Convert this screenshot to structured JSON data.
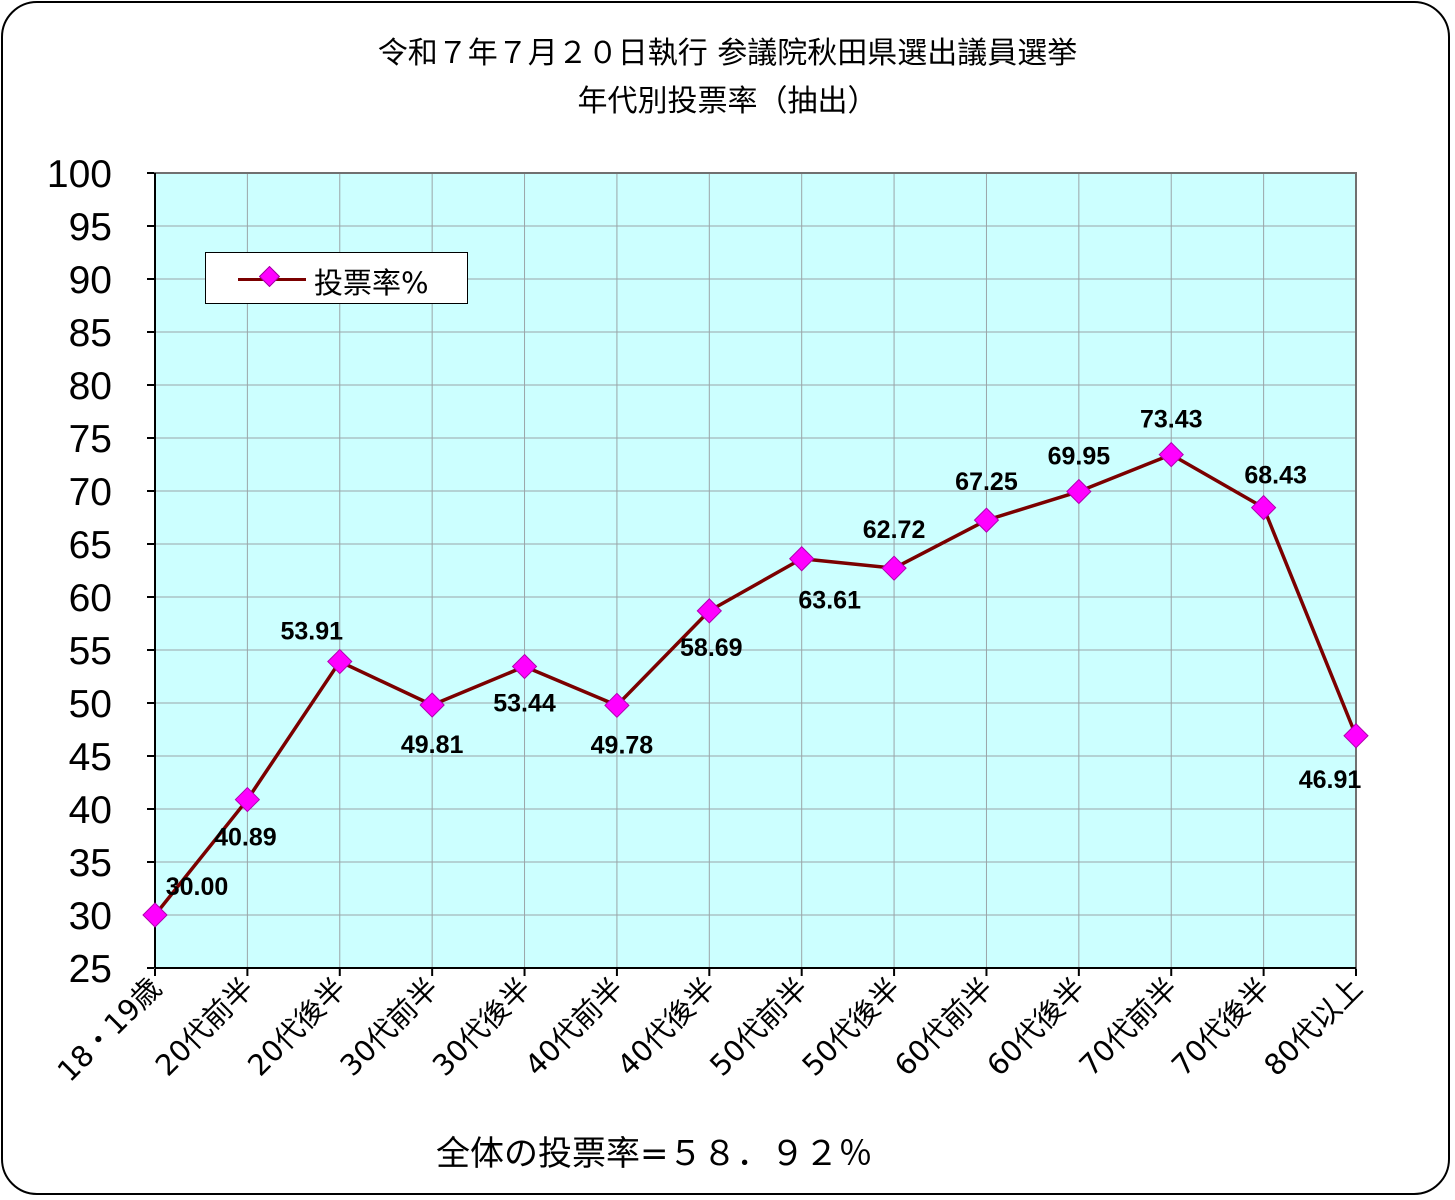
{
  "chart_data": {
    "type": "line",
    "title_line1": "令和７年７月２０日執行 参議院秋田県選出議員選挙",
    "title_line2": "年代別投票率（抽出）",
    "categories": [
      "18・19歳",
      "20代前半",
      "20代後半",
      "30代前半",
      "30代後半",
      "40代前半",
      "40代後半",
      "50代前半",
      "50代後半",
      "60代前半",
      "60代後半",
      "70代前半",
      "70代後半",
      "80代以上"
    ],
    "series": [
      {
        "name": "投票率%",
        "values": [
          30.0,
          40.89,
          53.91,
          49.81,
          53.44,
          49.78,
          58.69,
          63.61,
          62.72,
          67.25,
          69.95,
          73.43,
          68.43,
          46.91
        ],
        "labels": [
          "30.00",
          "40.89",
          "53.91",
          "49.81",
          "53.44",
          "49.78",
          "58.69",
          "63.61",
          "62.72",
          "67.25",
          "69.95",
          "73.43",
          "68.43",
          "46.91"
        ],
        "line_color": "#7b0000",
        "marker_color": "#ff00ff"
      }
    ],
    "ylim": [
      25,
      100
    ],
    "ytick_step": 5,
    "yticks": [
      "25",
      "30",
      "35",
      "40",
      "45",
      "50",
      "55",
      "60",
      "65",
      "70",
      "75",
      "80",
      "85",
      "90",
      "95",
      "100"
    ],
    "xlabel": "",
    "ylabel": "",
    "grid": true,
    "plot_background": "#ccffff",
    "legend_position": "top-left",
    "footer_text": "全体の投票率=５８．９２％"
  }
}
